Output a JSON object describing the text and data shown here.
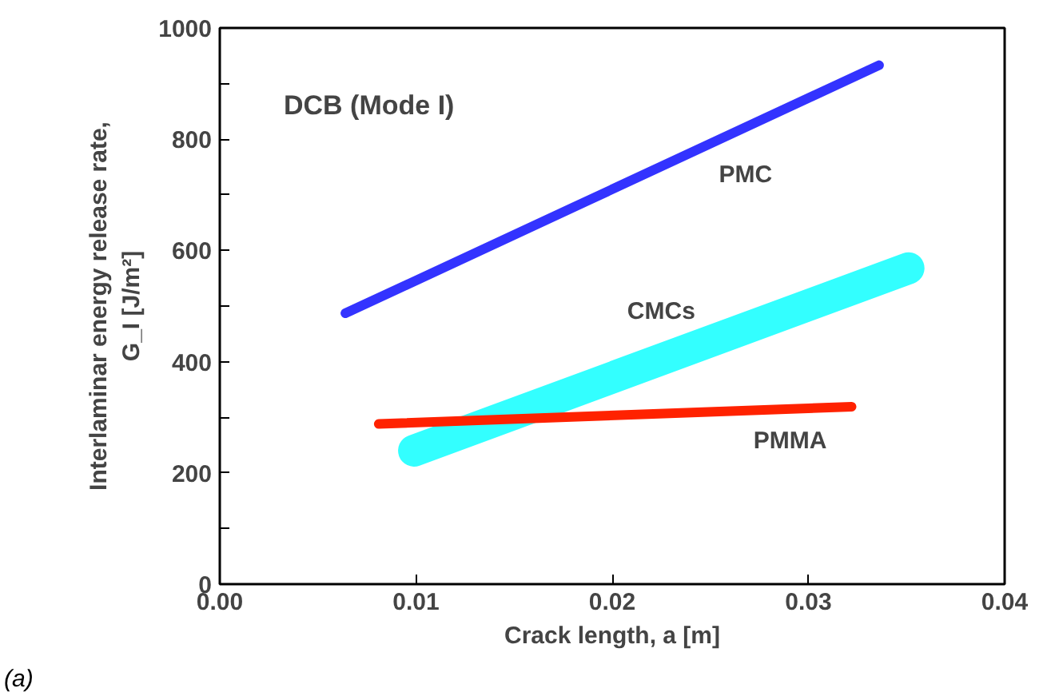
{
  "chart_data": {
    "type": "line",
    "xlabel": "Crack length, a [m]",
    "ylabel": "Interlaminar energy release rate,\nG_I [J/m²]",
    "annotations": [
      "DCB (Mode I)",
      "(a)"
    ],
    "series": [
      {
        "name": "PMC",
        "color": "#3333ff",
        "x": [
          0.0064,
          0.0336
        ],
        "values": [
          487,
          933
        ]
      },
      {
        "name": "CMCs",
        "color": "#33ffff",
        "x": [
          0.0099,
          0.0351
        ],
        "values": [
          240,
          568
        ]
      },
      {
        "name": "PMMA",
        "color": "#ff2200",
        "x": [
          0.0081,
          0.0322
        ],
        "values": [
          288,
          319
        ]
      }
    ],
    "xlim": [
      0,
      0.04
    ],
    "xticks": [
      {
        "value": 0,
        "label": "0.00"
      },
      {
        "value": 0.01,
        "label": "0.01"
      },
      {
        "value": 0.02,
        "label": "0.02"
      },
      {
        "value": 0.03,
        "label": "0.03"
      },
      {
        "value": 0.04,
        "label": "0.04"
      }
    ],
    "ylim": [
      0,
      1000
    ],
    "yticks": [
      0,
      {
        "value": 100,
        "label": null
      },
      200,
      {
        "value": 300,
        "label": null
      },
      400,
      {
        "value": 500,
        "label": null
      },
      600,
      {
        "value": 700,
        "label": null
      },
      800,
      {
        "value": 900,
        "label": null
      },
      1000
    ],
    "grid": false,
    "marker": "none",
    "line_style": "solid"
  }
}
